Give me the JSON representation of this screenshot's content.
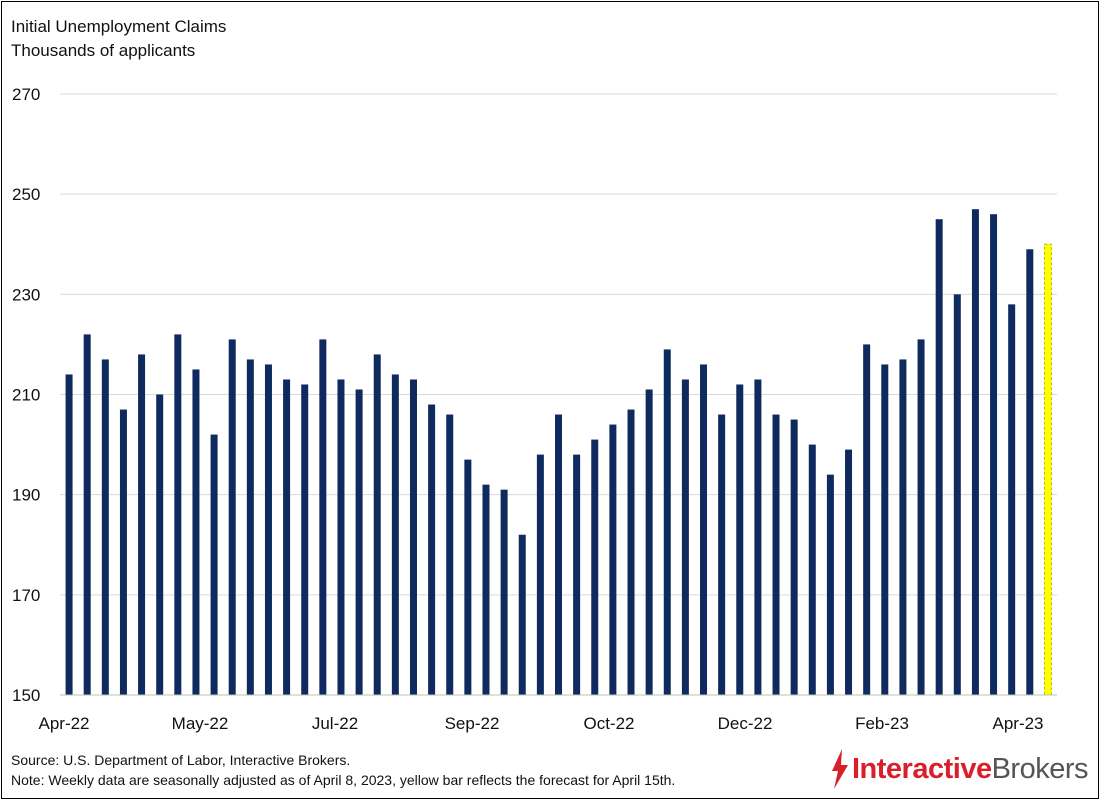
{
  "chart_data": {
    "type": "bar",
    "title": "Initial Unemployment Claims",
    "subtitle": "Thousands of applicants",
    "xlabel": "",
    "ylabel": "",
    "ylim": [
      150,
      270
    ],
    "yticks": [
      150,
      170,
      190,
      210,
      230,
      250,
      270
    ],
    "grid": true,
    "xtick_labels": [
      "Apr-22",
      "May-22",
      "Jul-22",
      "Sep-22",
      "Oct-22",
      "Dec-22",
      "Feb-23",
      "Apr-23"
    ],
    "series": [
      {
        "values": [
          214,
          222,
          217,
          207,
          218,
          210,
          222,
          215,
          202,
          221,
          217,
          216,
          213,
          212,
          221,
          213,
          211,
          218,
          214,
          213,
          208,
          206,
          197,
          192,
          191,
          182,
          198,
          206,
          198,
          201,
          204,
          207,
          211,
          219,
          213,
          216,
          206,
          212,
          213,
          206,
          205,
          200,
          194,
          199,
          220,
          216,
          217,
          221,
          245,
          230,
          247,
          246,
          228,
          239
        ],
        "color": "#0e2a5e"
      },
      {
        "values": [
          240
        ],
        "color": "#ffff00"
      }
    ]
  },
  "footer": {
    "source": "Source: U.S. Department of Labor, Interactive Brokers.",
    "note": "Note: Weekly data are seasonally adjusted as of April 8, 2023, yellow bar reflects the forecast for April 15th."
  },
  "logo": {
    "part1": "Interactive",
    "part2": "Brokers"
  },
  "colors": {
    "bar": "#0e2a5e",
    "forecast": "#ffff00",
    "grid": "#d9d9d9",
    "brand": "#d81f2a"
  }
}
